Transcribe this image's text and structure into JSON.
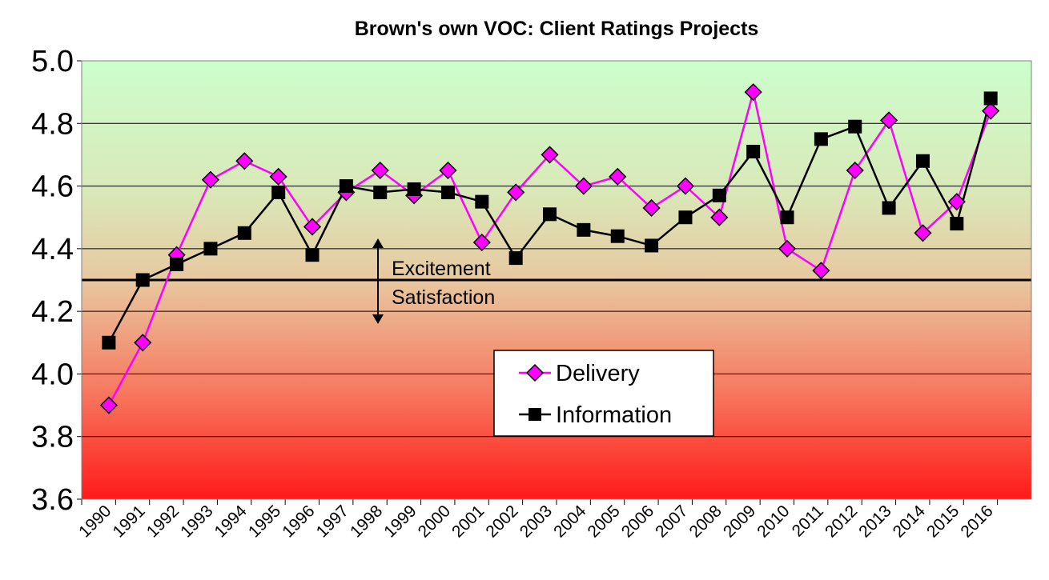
{
  "chart_data": {
    "type": "line",
    "title": "Brown's own VOC:  Client Ratings Projects",
    "xlabel": "",
    "ylabel": "",
    "categories": [
      "1990",
      "1991",
      "1992",
      "1993",
      "1994",
      "1995",
      "1996",
      "1997",
      "1998",
      "1999",
      "2000",
      "2001",
      "2002",
      "2003",
      "2004",
      "2005",
      "2006",
      "2007",
      "2008",
      "2009",
      "2010",
      "2011",
      "2012",
      "2013",
      "2014",
      "2015",
      "2016"
    ],
    "ylim": [
      3.6,
      5.0
    ],
    "yticks": [
      "3.6",
      "3.8",
      "4.0",
      "4.2",
      "4.4",
      "4.6",
      "4.8",
      "5.0"
    ],
    "grid": true,
    "legend_position": "bottom-center",
    "series": [
      {
        "name": "Delivery",
        "color": "#ff00ff",
        "marker": "diamond",
        "values": [
          3.9,
          4.1,
          4.38,
          4.62,
          4.68,
          4.63,
          4.47,
          4.58,
          4.65,
          4.57,
          4.65,
          4.42,
          4.58,
          4.7,
          4.6,
          4.63,
          4.53,
          4.6,
          4.5,
          4.9,
          4.4,
          4.33,
          4.65,
          4.81,
          4.45,
          4.55,
          4.84
        ]
      },
      {
        "name": "Information",
        "color": "#000000",
        "marker": "square",
        "values": [
          4.1,
          4.3,
          4.35,
          4.4,
          4.45,
          4.58,
          4.38,
          4.6,
          4.58,
          4.59,
          4.58,
          4.55,
          4.37,
          4.51,
          4.46,
          4.44,
          4.41,
          4.5,
          4.57,
          4.71,
          4.5,
          4.75,
          4.79,
          4.53,
          4.68,
          4.48,
          4.88
        ]
      }
    ],
    "threshold": {
      "value": 4.3,
      "label_above": "Excitement",
      "label_below": "Satisfaction"
    },
    "background_gradient": [
      "#ccffcc",
      "#e8c8a0",
      "#ff1a1a"
    ]
  }
}
